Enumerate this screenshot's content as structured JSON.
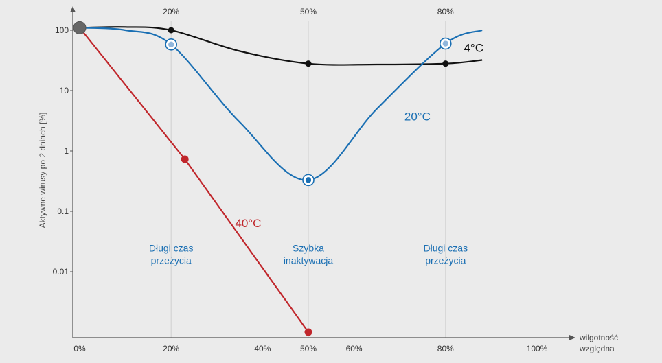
{
  "chart_data": {
    "type": "line",
    "title": "",
    "ylabel": "Aktywne wirusy po 2 dniach [%]",
    "xlabel_lines": [
      "wilgotność",
      "względna"
    ],
    "x_unit": "%",
    "xlim": [
      0,
      100
    ],
    "ylim": [
      0.001,
      100
    ],
    "y_scale": "log",
    "grid": true,
    "colors": {
      "4": "#111111",
      "20": "#1a6fb3",
      "40": "#c0262b",
      "start": "#666666"
    },
    "x_ticks": [
      {
        "value": 0,
        "label": "0%"
      },
      {
        "value": 20,
        "label": "20%"
      },
      {
        "value": 40,
        "label": "40%"
      },
      {
        "value": 50,
        "label": "50%"
      },
      {
        "value": 60,
        "label": "60%"
      },
      {
        "value": 80,
        "label": "80%"
      },
      {
        "value": 100,
        "label": "100%"
      }
    ],
    "top_ticks": [
      {
        "value": 20,
        "label": "20%"
      },
      {
        "value": 50,
        "label": "50%"
      },
      {
        "value": 80,
        "label": "80%"
      }
    ],
    "y_ticks": [
      {
        "value": 100,
        "label": "100"
      },
      {
        "value": 10,
        "label": "10"
      },
      {
        "value": 1,
        "label": "1"
      },
      {
        "value": 0.1,
        "label": "0.1"
      },
      {
        "value": 0.01,
        "label": "0.01"
      }
    ],
    "start_point": {
      "x": 0,
      "y": 110
    },
    "series": [
      {
        "key": "4",
        "name": "4°C",
        "curve": [
          [
            0,
            110
          ],
          [
            10,
            113
          ],
          [
            20,
            100
          ],
          [
            35,
            45
          ],
          [
            50,
            28
          ],
          [
            65,
            27
          ],
          [
            80,
            28
          ],
          [
            88,
            32
          ]
        ],
        "points": [
          [
            20,
            100
          ],
          [
            50,
            28
          ],
          [
            80,
            28
          ]
        ],
        "marker": "dot"
      },
      {
        "key": "20",
        "name": "20°C",
        "curve": [
          [
            0,
            110
          ],
          [
            10,
            100
          ],
          [
            20,
            58
          ],
          [
            35,
            3
          ],
          [
            50,
            0.33
          ],
          [
            65,
            5
          ],
          [
            80,
            60
          ],
          [
            88,
            100
          ]
        ],
        "points": [
          [
            20,
            58
          ],
          [
            50,
            0.33
          ],
          [
            80,
            60
          ]
        ],
        "marker": "ring"
      },
      {
        "key": "40",
        "name": "40°C",
        "curve": [
          [
            0,
            110
          ],
          [
            23,
            0.73
          ],
          [
            50,
            0.001
          ]
        ],
        "points": [
          [
            23,
            0.73
          ],
          [
            50,
            0.001
          ]
        ],
        "marker": "dot"
      }
    ],
    "series_labels": [
      {
        "key": "4",
        "text": "4°C",
        "x": 84,
        "y": 44
      },
      {
        "key": "20",
        "text": "20°C",
        "x": 71,
        "y": 3.2
      },
      {
        "key": "40",
        "text": "40°C",
        "x": 34,
        "y": 0.055
      }
    ],
    "annotations": [
      {
        "x": 20,
        "y": 0.02,
        "lines": [
          "Długi czas",
          "przeżycia"
        ]
      },
      {
        "x": 50,
        "y": 0.02,
        "lines": [
          "Szybka",
          "inaktywacja"
        ]
      },
      {
        "x": 80,
        "y": 0.02,
        "lines": [
          "Długi czas",
          "przeżycia"
        ]
      }
    ]
  }
}
